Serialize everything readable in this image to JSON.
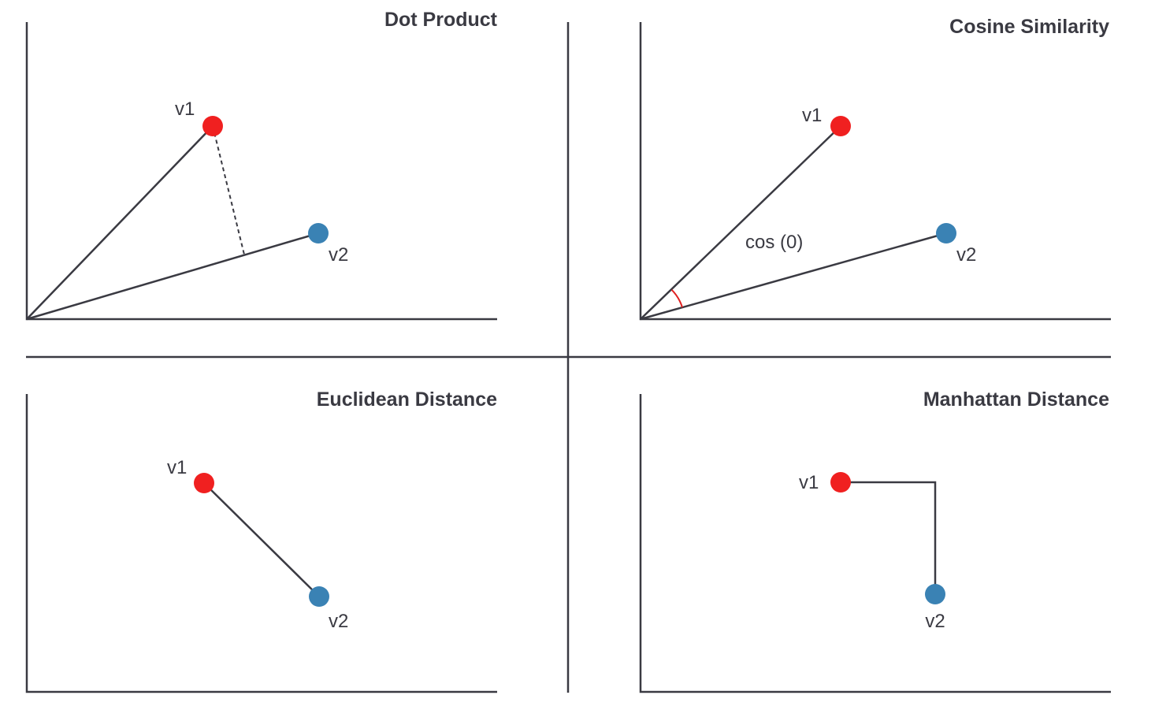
{
  "colors": {
    "v1_point": "#f02020",
    "v2_point": "#3a82b4",
    "angle_arc": "#e02020",
    "lines": "#3a3a42"
  },
  "panels": {
    "dot_product": {
      "title": "Dot Product",
      "v1_label": "v1",
      "v2_label": "v2"
    },
    "cosine_similarity": {
      "title": "Cosine Similarity",
      "v1_label": "v1",
      "v2_label": "v2",
      "angle_label": "cos (0)"
    },
    "euclidean_distance": {
      "title": "Euclidean Distance",
      "v1_label": "v1",
      "v2_label": "v2"
    },
    "manhattan_distance": {
      "title": "Manhattan Distance",
      "v1_label": "v1",
      "v2_label": "v2"
    }
  }
}
